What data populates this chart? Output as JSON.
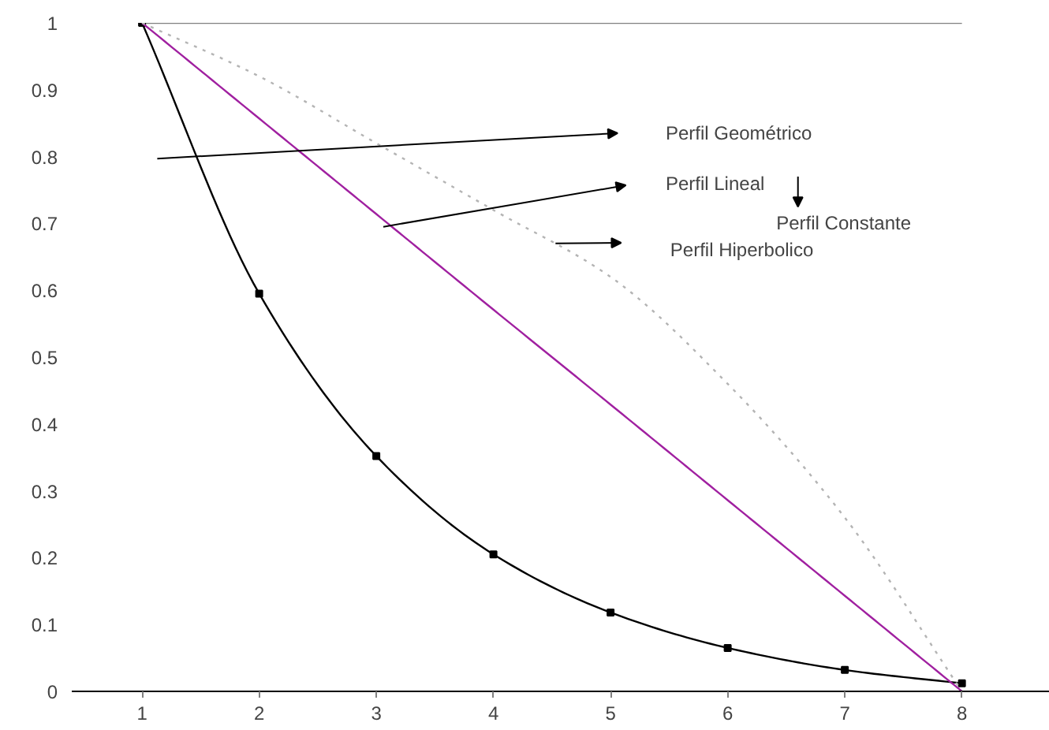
{
  "chart_data": {
    "type": "line",
    "x": [
      1,
      2,
      3,
      4,
      5,
      6,
      7,
      8
    ],
    "series": [
      {
        "color": "#808080",
        "values": [
          1,
          1,
          1,
          1,
          1,
          1,
          1,
          1
        ],
        "marker": "none",
        "line_style": "solid"
      },
      {
        "color": "#000000",
        "values": [
          1,
          0.595,
          0.352,
          0.205,
          0.118,
          0.065,
          0.032,
          0.012
        ],
        "marker": "square",
        "line_style": "solid"
      },
      {
        "color": "#a020a0",
        "values": [
          1,
          0.857,
          0.714,
          0.571,
          0.429,
          0.286,
          0.143,
          0
        ],
        "marker": "none",
        "line_style": "solid"
      },
      {
        "color": "#b4b4b4",
        "values": [
          1,
          0.92,
          0.82,
          0.72,
          0.62,
          0.46,
          0.26,
          0
        ],
        "marker": "none",
        "line_style": "dotted"
      }
    ],
    "annotations": [
      "Perfil Constante",
      "Perfil Geométrico",
      "Perfil Lineal",
      "Perfil Hiperbolico"
    ],
    "xlim": [
      0.4,
      8.75
    ],
    "ylim": [
      0,
      1
    ],
    "xticks": [
      1,
      2,
      3,
      4,
      5,
      6,
      7,
      8
    ],
    "yticks": [
      0,
      0.1,
      0.2,
      0.3,
      0.4,
      0.5,
      0.6,
      0.7,
      0.8,
      0.9,
      1
    ],
    "grid": false
  }
}
